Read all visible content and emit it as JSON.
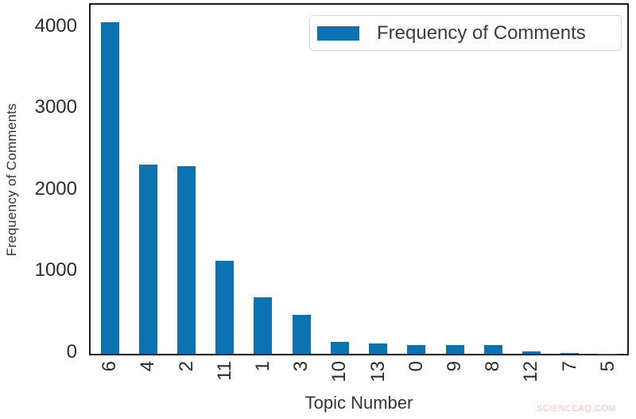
{
  "watermark": "SCIENCEAQ.COM",
  "colors": {
    "bar": "#0b73b2",
    "spine": "#1d1d1d",
    "tick_text": "#2d2d2d",
    "legend_border": "#d7d7d7",
    "watermark": "#f2c6c4"
  },
  "legend": {
    "label": "Frequency of Comments",
    "position": "upper right"
  },
  "chart_data": {
    "type": "bar",
    "title": "",
    "xlabel": "Topic Number",
    "ylabel": "Frequency of Comments",
    "categories": [
      "6",
      "4",
      "2",
      "11",
      "1",
      "3",
      "10",
      "13",
      "0",
      "9",
      "8",
      "12",
      "7",
      "5"
    ],
    "values": [
      4070,
      2325,
      2300,
      1140,
      690,
      475,
      150,
      125,
      105,
      110,
      112,
      30,
      8,
      4
    ],
    "series": [
      {
        "name": "Frequency of Comments",
        "values": [
          4070,
          2325,
          2300,
          1140,
          690,
          475,
          150,
          125,
          105,
          110,
          112,
          30,
          8,
          4
        ]
      }
    ],
    "yticks": [
      0,
      1000,
      2000,
      3000,
      4000
    ],
    "ylim": [
      0,
      4280
    ],
    "bar_color": "#0b73b2",
    "legend_entries": [
      "Frequency of Comments"
    ],
    "legend_position": "upper right",
    "grid": false,
    "x_tick_rotation": 90
  }
}
